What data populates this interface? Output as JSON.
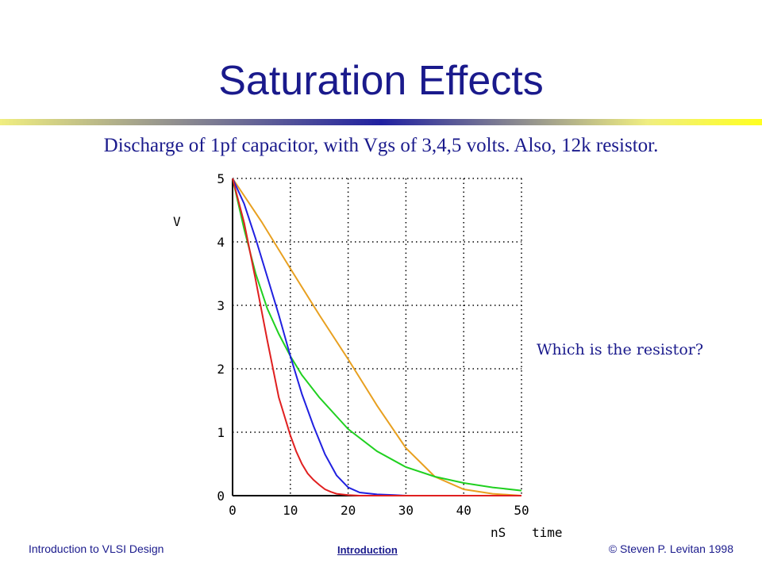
{
  "slide": {
    "title": "Saturation Effects",
    "subtitle": "Discharge of 1pf capacitor, with Vgs of 3,4,5 volts. Also, 12k resistor.",
    "question": "Which is the resistor?"
  },
  "footer": {
    "left": "Introduction to VLSI Design",
    "center": "Introduction",
    "right": "© Steven P. Levitan 1998"
  },
  "chart_data": {
    "type": "line",
    "title": "",
    "xlabel": "time",
    "xunit": "nS",
    "ylabel": "V",
    "xlim": [
      0,
      50
    ],
    "ylim": [
      0,
      5
    ],
    "xticks": [
      "0",
      "10",
      "20",
      "30",
      "40",
      "50"
    ],
    "yticks": [
      "0",
      "1",
      "2",
      "3",
      "4",
      "5"
    ],
    "grid": true,
    "series": [
      {
        "color": "#e8a020",
        "x": [
          0,
          5,
          10,
          15,
          20,
          25,
          30,
          35,
          40,
          45,
          50
        ],
        "y": [
          5,
          4.32,
          3.58,
          2.85,
          2.15,
          1.42,
          0.75,
          0.3,
          0.1,
          0.03,
          0
        ]
      },
      {
        "color": "#20d020",
        "x": [
          0,
          2,
          4,
          6,
          8,
          10,
          12,
          15,
          18,
          20,
          25,
          30,
          35,
          40,
          45,
          50
        ],
        "y": [
          5,
          4.2,
          3.5,
          2.95,
          2.55,
          2.2,
          1.9,
          1.55,
          1.25,
          1.05,
          0.7,
          0.45,
          0.3,
          0.2,
          0.13,
          0.08
        ]
      },
      {
        "color": "#2020e0",
        "x": [
          0,
          2,
          4,
          6,
          8,
          10,
          12,
          14,
          16,
          18,
          20,
          22,
          25,
          28,
          30
        ],
        "y": [
          5,
          4.6,
          4.05,
          3.45,
          2.85,
          2.2,
          1.6,
          1.1,
          0.65,
          0.32,
          0.13,
          0.05,
          0.02,
          0.01,
          0
        ]
      },
      {
        "color": "#e02020",
        "x": [
          0,
          2,
          4,
          6,
          8,
          10,
          11,
          12,
          13,
          14,
          15,
          16,
          17,
          18,
          20,
          22,
          50
        ],
        "y": [
          5,
          4.3,
          3.4,
          2.45,
          1.55,
          0.95,
          0.7,
          0.5,
          0.35,
          0.25,
          0.17,
          0.1,
          0.06,
          0.03,
          0.01,
          0,
          0
        ]
      }
    ]
  }
}
